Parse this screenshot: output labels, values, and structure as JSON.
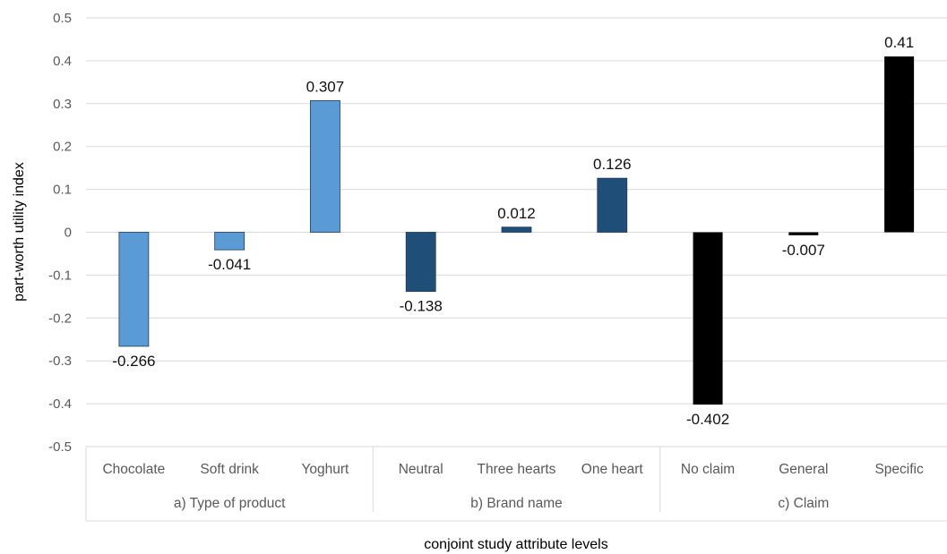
{
  "chart_data": {
    "type": "bar",
    "xlabel": "conjoint study attribute levels",
    "ylabel": "part-worth utility index",
    "ylim": [
      -0.5,
      0.5
    ],
    "yticks": [
      "0.5",
      "0.4",
      "0.3",
      "0.2",
      "0.1",
      "0",
      "-0.1",
      "-0.2",
      "-0.3",
      "-0.4",
      "-0.5"
    ],
    "grid": true,
    "groups": [
      {
        "name": "a) Type of product",
        "color": "#5b9bd5",
        "categories": [
          "Chocolate",
          "Soft drink",
          "Yoghurt"
        ],
        "values": [
          -0.266,
          -0.041,
          0.307
        ],
        "labels": [
          "-0.266",
          "-0.041",
          "0.307"
        ]
      },
      {
        "name": "b) Brand name",
        "color": "#1f4e79",
        "categories": [
          "Neutral",
          "Three hearts",
          "One heart"
        ],
        "values": [
          -0.138,
          0.012,
          0.126
        ],
        "labels": [
          "-0.138",
          "0.012",
          "0.126"
        ]
      },
      {
        "name": "c) Claim",
        "color": "#000000",
        "categories": [
          "No claim",
          "General",
          "Specific"
        ],
        "values": [
          -0.402,
          -0.007,
          0.41
        ],
        "labels": [
          "-0.402",
          "-0.007",
          "0.41"
        ]
      }
    ]
  }
}
